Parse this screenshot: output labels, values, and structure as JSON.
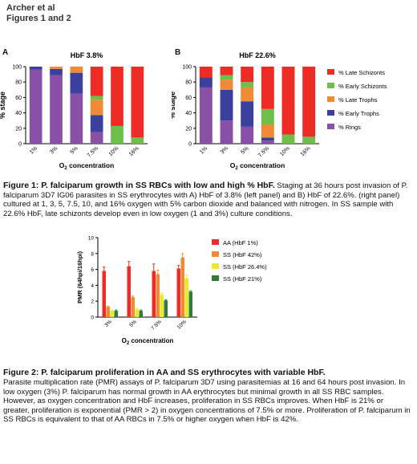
{
  "header": {
    "line1": "Archer et al",
    "line2": "Figures 1 and 2"
  },
  "fig1": {
    "panel_a_letter": "A",
    "panel_b_letter": "B",
    "caption_title": "Figure 1: P. falciparum growth in SS RBCs with low and high % HbF.",
    "caption_body": " Staging at 36 hours post invasion of P. falciparum 3D7 IG06 parasites in SS erythrocytes with A) HbF of 3.8% (left panel) and B) HbF of 22.6%. (right panel) cultured at 1, 3, 5, 7.5, 10, and 16% oxygen with 5% carbon dioxide and balanced with nitrogen. In SS sample with 22.6% HbF, late schizonts develop even in low oxygen (1 and 3%) culture conditions."
  },
  "fig2": {
    "caption_title": "Figure 2: P. falciparum proliferation in AA and SS erythrocytes with variable HbF.",
    "caption_body": "Parasite multiplication rate (PMR) assays of P. falciparum 3D7 using parasitemias at 16 and 64 hours post invasion. In low oxygen (3%) P. falciparum has normal growth in AA erythrocytes but minimal growth in all SS RBC samples.  However, as oxygen concentration and HbF increases, proliferation in SS RBCs improves. When HbF is 21% or greater, proliferation is exponential (PMR > 2) in oxygen concentrations of 7.5% or more. Proliferation of P. falciparum in SS RBCs is equivalent to that of AA RBCs in 7.5% or higher oxygen when HbF is 42%."
  },
  "chart_data": [
    {
      "type": "bar",
      "stacked": true,
      "title": "HbF 3.8%",
      "xlabel": "O2 concentration",
      "ylabel": "% stage",
      "categories": [
        "1%",
        "3%",
        "5%",
        "7.5%",
        "10%",
        "16%"
      ],
      "ylim": [
        0,
        100
      ],
      "yticks": [
        0,
        20,
        40,
        60,
        80,
        100
      ],
      "series": [
        {
          "name": "% Rings",
          "color": "#8a4fa6",
          "values": [
            96,
            89,
            65,
            15,
            0,
            0
          ]
        },
        {
          "name": "% Early Trophs",
          "color": "#3b3f9e",
          "values": [
            4,
            8,
            27,
            22,
            0,
            0
          ]
        },
        {
          "name": "% Late Trophs",
          "color": "#f08a35",
          "values": [
            0,
            3,
            8,
            20,
            0,
            0
          ]
        },
        {
          "name": "% Early Schizonts",
          "color": "#6cc04a",
          "values": [
            0,
            0,
            0,
            5,
            23,
            8
          ]
        },
        {
          "name": "% Late Schizonts",
          "color": "#ee2b24",
          "values": [
            0,
            0,
            0,
            38,
            77,
            92
          ]
        }
      ]
    },
    {
      "type": "bar",
      "stacked": true,
      "title": "HbF 22.6%",
      "xlabel": "O2 concentration",
      "ylabel": "% stage",
      "categories": [
        "1%",
        "3%",
        "5%",
        "7.5%",
        "10%",
        "16%"
      ],
      "ylim": [
        0,
        100
      ],
      "yticks": [
        0,
        20,
        40,
        60,
        80,
        100
      ],
      "legend": [
        "% Late Schizonts",
        "% Early Schizonts",
        "% Late Trophs",
        "% Early Trophs",
        "% Rings"
      ],
      "series": [
        {
          "name": "% Rings",
          "color": "#8a4fa6",
          "values": [
            73,
            30,
            22,
            4,
            0,
            0
          ]
        },
        {
          "name": "% Early Trophs",
          "color": "#3b3f9e",
          "values": [
            13,
            40,
            33,
            4,
            0,
            0
          ]
        },
        {
          "name": "% Late Trophs",
          "color": "#f08a35",
          "values": [
            0,
            13,
            18,
            17,
            0,
            0
          ]
        },
        {
          "name": "% Early Schizonts",
          "color": "#6cc04a",
          "values": [
            0,
            6,
            7,
            20,
            12,
            9
          ]
        },
        {
          "name": "% Late Schizonts",
          "color": "#ee2b24",
          "values": [
            14,
            11,
            20,
            55,
            88,
            91
          ]
        }
      ]
    },
    {
      "type": "bar",
      "title": "",
      "xlabel": "O2 concentration",
      "ylabel": "PMR (64hpi/16hpi)",
      "categories": [
        "3%",
        "5%",
        "7.5%",
        "10%"
      ],
      "ylim": [
        0,
        10
      ],
      "yticks": [
        0,
        2,
        4,
        6,
        8,
        10
      ],
      "series": [
        {
          "name": "AA (HbF 1%)",
          "color": "#ee2b24",
          "values": [
            5.8,
            6.4,
            5.8,
            6.1
          ],
          "errors": [
            0.5,
            0.6,
            0.9,
            0.4
          ]
        },
        {
          "name": "SS (HbF 42%)",
          "color": "#f08a35",
          "values": [
            1.3,
            2.5,
            5.4,
            7.5
          ],
          "errors": [
            0.1,
            0.15,
            0.5,
            0.5
          ]
        },
        {
          "name": "SS (HbF 26.4%)",
          "color": "#eaea2a",
          "values": [
            0.8,
            1.0,
            2.8,
            4.9
          ],
          "errors": [
            0.05,
            0.1,
            0.2,
            0.4
          ]
        },
        {
          "name": "SS (HbF 21%)",
          "color": "#2e7d3a",
          "values": [
            0.8,
            0.8,
            2.1,
            3.2
          ],
          "errors": [
            0.1,
            0.1,
            0.1,
            0.1
          ]
        }
      ]
    }
  ]
}
